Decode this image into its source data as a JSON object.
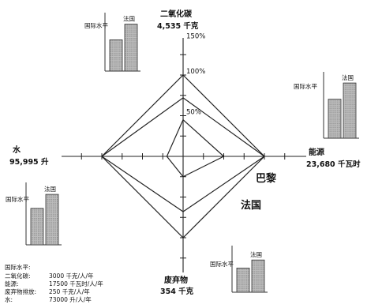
{
  "chart_data": {
    "type": "radar",
    "city": "巴黎",
    "country": "法国",
    "ring_labels": [
      "50%",
      "100%",
      "150%"
    ],
    "ring_values": [
      50,
      100,
      150
    ],
    "axes": [
      {
        "key": "co2",
        "label": "二氧化碳",
        "value_text": "4,535 千克",
        "national_pct": 100,
        "france_pct": 72,
        "paris_pct": 45
      },
      {
        "key": "energy",
        "label": "能源",
        "value_text": "23,680 千瓦时",
        "national_pct": 100,
        "france_pct": 100,
        "paris_pct": 50
      },
      {
        "key": "waste",
        "label": "废弃物",
        "value_text": "354 千克",
        "national_pct": 100,
        "france_pct": 68,
        "paris_pct": 25
      },
      {
        "key": "water",
        "label": "水",
        "value_text": "95,995 升",
        "national_pct": 100,
        "france_pct": 100,
        "paris_pct": 20
      }
    ],
    "minicharts": {
      "labels": {
        "international": "国际水平",
        "france": "法国"
      },
      "bars": {
        "co2": [
          0.6,
          0.9
        ],
        "energy": [
          0.65,
          0.92
        ],
        "water": [
          0.65,
          0.9
        ],
        "waste": [
          0.6,
          0.8
        ]
      }
    },
    "legend": {
      "title": "国际水平:",
      "rows": [
        {
          "name": "二氧化碳:",
          "value": "3000 千克/人/年"
        },
        {
          "name": "能源:",
          "value": "17500 千瓦时/人/年"
        },
        {
          "name": "废弃物排放:",
          "value": "250 千克/人/年"
        },
        {
          "name": "水:",
          "value": "73000 升/人/年"
        }
      ]
    }
  }
}
